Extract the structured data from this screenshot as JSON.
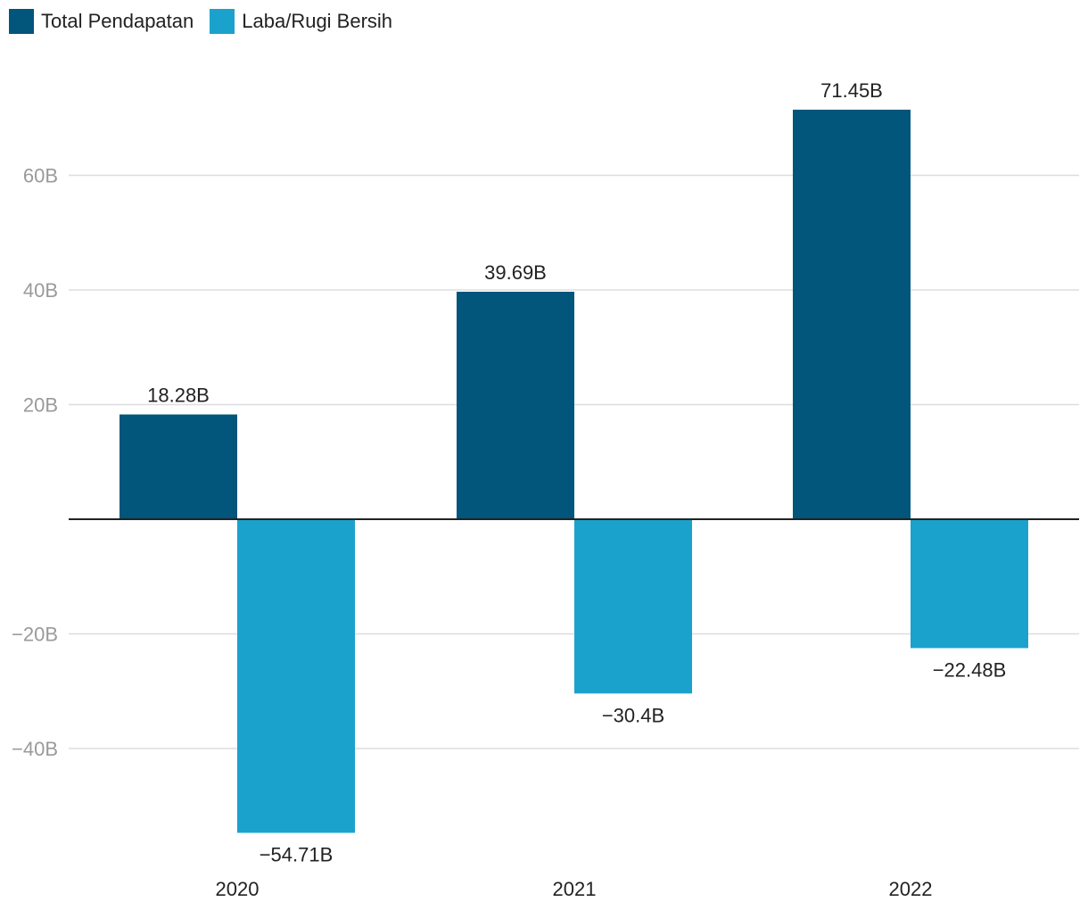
{
  "chart_data": {
    "type": "bar",
    "categories": [
      "2020",
      "2021",
      "2022"
    ],
    "series": [
      {
        "name": "Total Pendapatan",
        "values": [
          18.28,
          39.69,
          71.45
        ],
        "color": "#02557b",
        "labels": [
          "18.28B",
          "39.69B",
          "71.45B"
        ]
      },
      {
        "name": "Laba/Rugi Bersih",
        "values": [
          -54.71,
          -30.4,
          -22.48
        ],
        "color": "#1aa2cd",
        "labels": [
          "−54.71B",
          "−30.4B",
          "−22.48B"
        ]
      }
    ],
    "ylim": [
      -60,
      80
    ],
    "yticks": [
      {
        "value": 60,
        "label": "60B"
      },
      {
        "value": 40,
        "label": "40B"
      },
      {
        "value": 20,
        "label": "20B"
      },
      {
        "value": -20,
        "label": "−20B"
      },
      {
        "value": -40,
        "label": "−40B"
      }
    ],
    "grid": true,
    "legend": "top-left"
  }
}
